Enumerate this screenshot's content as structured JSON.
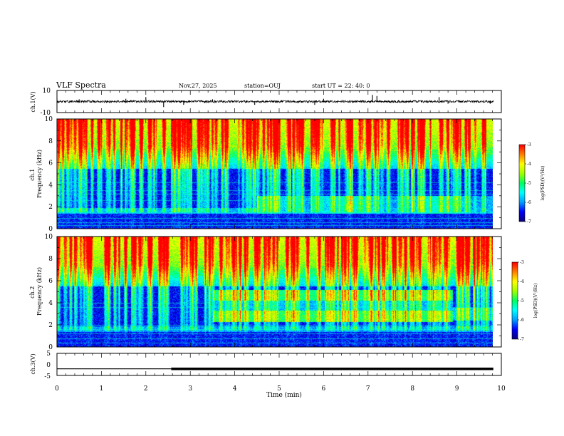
{
  "header": {
    "title": "VLF Spectra",
    "date": "Nov.27, 2025",
    "station": "station=OUJ",
    "start_ut": "start UT = 22: 40: 0"
  },
  "chart_data": [
    {
      "type": "line",
      "name": "ch.1 waveform",
      "ylabel": "ch.1(V)",
      "xlim": [
        0,
        10
      ],
      "ylim": [
        -10,
        10
      ],
      "yticks": [
        "10",
        "-10"
      ],
      "baseline": 0,
      "amplitude": 1,
      "spikes": [
        {
          "t": 0.0,
          "v": 3
        },
        {
          "t": 0.5,
          "v": 2
        },
        {
          "t": 1.55,
          "v": 2.5
        },
        {
          "t": 2.0,
          "v": 4
        },
        {
          "t": 2.4,
          "v": -5
        },
        {
          "t": 2.85,
          "v": -3
        },
        {
          "t": 3.5,
          "v": 2
        },
        {
          "t": 4.45,
          "v": -3
        },
        {
          "t": 5.8,
          "v": -3
        },
        {
          "t": 6.0,
          "v": 2.5
        },
        {
          "t": 7.1,
          "v": 6
        },
        {
          "t": 7.2,
          "v": 5
        },
        {
          "t": 8.6,
          "v": 4
        },
        {
          "t": 8.8,
          "v": -2
        },
        {
          "t": 9.75,
          "v": -2
        }
      ]
    },
    {
      "type": "heatmap",
      "name": "ch.1 spectrogram",
      "ylabel": "ch.1\nFrequency (kHz)",
      "xlim": [
        0,
        10
      ],
      "ylim": [
        0,
        10
      ],
      "yticks": [
        "0",
        "2",
        "4",
        "6",
        "8",
        "10"
      ],
      "zlim": [
        -7,
        -3
      ],
      "colorbar_label": "log(PSD)(V²/Hz)",
      "colorbar_ticks": [
        "-3",
        "-4",
        "-5",
        "-6",
        "-7"
      ],
      "data_end_min": 9.82
    },
    {
      "type": "heatmap",
      "name": "ch.2 spectrogram",
      "ylabel": "ch.2\nFrequency (kHz)",
      "xlim": [
        0,
        10
      ],
      "ylim": [
        0,
        10
      ],
      "yticks": [
        "0",
        "2",
        "4",
        "6",
        "8",
        "10"
      ],
      "zlim": [
        -7,
        -3
      ],
      "colorbar_label": "log(PSD)(V²/Hz)",
      "colorbar_ticks": [
        "-3",
        "-4",
        "-5",
        "-6",
        "-7"
      ],
      "data_end_min": 9.82
    },
    {
      "type": "line",
      "name": "ch.3 level",
      "ylabel": "ch.3(V)",
      "xlim": [
        0,
        10
      ],
      "ylim": [
        -5,
        5
      ],
      "yticks": [
        "5",
        "0",
        "-5"
      ],
      "x": [
        0,
        2.57,
        2.57,
        9.82
      ],
      "y": [
        -2,
        -2,
        -2,
        -2
      ],
      "thick_from": 2.57
    }
  ],
  "xaxis": {
    "label": "Time (min)",
    "ticks": [
      "0",
      "1",
      "2",
      "3",
      "4",
      "5",
      "6",
      "7",
      "8",
      "9",
      "10"
    ]
  },
  "colors": {
    "scale": [
      "#0a0080",
      "#0000ff",
      "#00a0ff",
      "#00ffff",
      "#00ff60",
      "#a0ff00",
      "#ffff00",
      "#ff8000",
      "#ff0000"
    ]
  }
}
